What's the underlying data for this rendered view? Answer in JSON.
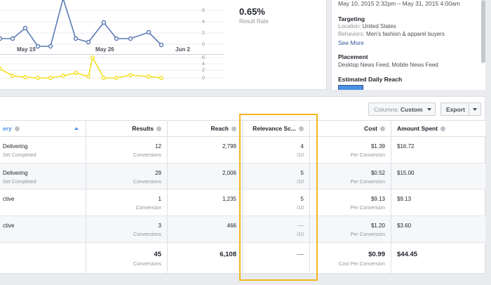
{
  "chart": {
    "x_labels": [
      "May 19",
      "May 26",
      "Jun 2"
    ],
    "top_ticks": [
      "6",
      "4",
      "2",
      "0"
    ],
    "bottom_ticks": [
      "6",
      "4",
      "2",
      "0"
    ],
    "top_series_color": "#5b7bb3",
    "bottom_series_color": "#f2e01c"
  },
  "metric": {
    "value": "0.65%",
    "label": "Result Rate"
  },
  "side": {
    "date_range": "May 10, 2015 2:32pm – May 31, 2015 4:00am",
    "targeting_title": "Targeting",
    "location_key": "Location:",
    "location_val": "United States",
    "behaviors_key": "Behaviors:",
    "behaviors_val": "Men's fashion & apparel buyers",
    "see_more": "See More",
    "placement_title": "Placement",
    "placement_val": "Desktop News Feed, Mobile News Feed",
    "reach_title": "Estimated Daily Reach"
  },
  "toolbar": {
    "columns_prefix": "Columns:",
    "columns_value": "Custom",
    "export_label": "Export"
  },
  "table": {
    "headers": {
      "delivery": "ery",
      "results": "Results",
      "reach": "Reach",
      "relevance": "Relevance Sc...",
      "cost": "Cost",
      "amount": "Amount Spent"
    },
    "rows": [
      {
        "delivery": "Delivering",
        "delivery_sub": "Set Completed",
        "results": "12",
        "results_sub": "Conversions",
        "reach": "2,799",
        "relevance": "4",
        "relevance_sub": "/10",
        "cost": "$1.39",
        "cost_sub": "Per Conversion",
        "amount": "$16.72"
      },
      {
        "delivery": "Delivering",
        "delivery_sub": "Set Completed",
        "results": "29",
        "results_sub": "Conversions",
        "reach": "2,006",
        "relevance": "5",
        "relevance_sub": "/10",
        "cost": "$0.52",
        "cost_sub": "Per Conversion",
        "amount": "$15.00"
      },
      {
        "delivery": "ctive",
        "delivery_sub": "",
        "results": "1",
        "results_sub": "Conversion",
        "reach": "1,235",
        "relevance": "5",
        "relevance_sub": "/10",
        "cost": "$9.13",
        "cost_sub": "Per Conversion",
        "amount": "$9.13"
      },
      {
        "delivery": "ctive",
        "delivery_sub": "",
        "results": "3",
        "results_sub": "Conversions",
        "reach": "466",
        "relevance": "—",
        "relevance_sub": "/10",
        "cost": "$1.20",
        "cost_sub": "Per Conversion",
        "amount": "$3.60"
      }
    ],
    "totals": {
      "results": "45",
      "results_sub": "Conversions",
      "reach": "6,108",
      "relevance": "—",
      "cost": "$0.99",
      "cost_sub": "Cost Per Conversion",
      "amount": "$44.45"
    }
  },
  "highlight_color": "#f5b521"
}
